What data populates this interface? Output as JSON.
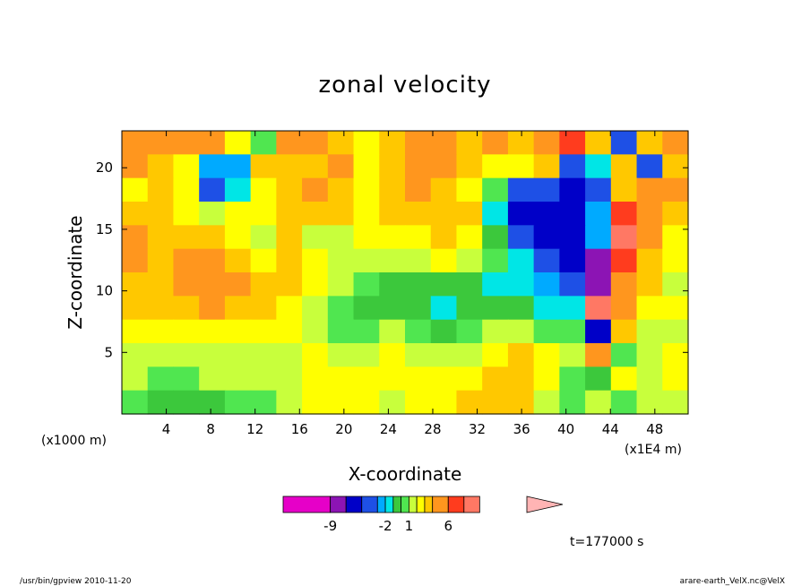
{
  "chart_data": {
    "type": "heatmap",
    "title": "zonal velocity",
    "xlabel": "X-coordinate",
    "ylabel": "Z-coordinate",
    "x_units": "(x1E4 m)",
    "y_units": "(x1000 m)",
    "xlim": [
      0,
      51
    ],
    "ylim": [
      0,
      23
    ],
    "x_ticks": [
      4,
      8,
      12,
      16,
      20,
      24,
      28,
      32,
      36,
      40,
      44,
      48
    ],
    "y_ticks": [
      5,
      10,
      15,
      20
    ],
    "colorbar": {
      "levels": [
        -15,
        -9,
        -7,
        -5,
        -3,
        -2,
        -1,
        0,
        1,
        2,
        3,
        4,
        6,
        8,
        10,
        16
      ],
      "colors": [
        "#e600c8",
        "#8c14b4",
        "#0000c8",
        "#1e50e6",
        "#00aaff",
        "#00e6e6",
        "#3cc83c",
        "#50e650",
        "#c8ff3c",
        "#ffff00",
        "#ffc800",
        "#ff961e",
        "#ff3c1e",
        "#ff7864",
        "#ffb4b4"
      ],
      "tick_labels": [
        "-9",
        "-2",
        "1",
        "6"
      ],
      "tick_values": [
        -9,
        -2,
        1,
        6
      ]
    },
    "grid": false,
    "z": [
      [
        4,
        4,
        5,
        4,
        2,
        0,
        4,
        4,
        3,
        2,
        3,
        5,
        4,
        3,
        4,
        3,
        4,
        6,
        3,
        -4,
        3,
        5
      ],
      [
        4,
        3,
        2,
        -3,
        -3,
        3,
        3,
        3,
        4,
        2,
        3,
        4,
        5,
        3,
        2,
        2,
        3,
        -4,
        -2,
        3,
        -5,
        3
      ],
      [
        2,
        3,
        2,
        -4,
        -2,
        2,
        3,
        4,
        3,
        2,
        3,
        4,
        3,
        2,
        0,
        -4,
        -5,
        -6,
        -4,
        3,
        4,
        4
      ],
      [
        3,
        3,
        2,
        1,
        2,
        2,
        3,
        3,
        3,
        2,
        3,
        3,
        3,
        3,
        -2,
        -6,
        -7,
        -6,
        -3,
        6,
        5,
        3
      ],
      [
        4,
        3,
        3,
        3,
        2,
        1,
        3,
        1,
        1,
        2,
        2,
        2,
        3,
        2,
        -1,
        -5,
        -7,
        -7,
        -3,
        8,
        4,
        2
      ],
      [
        4,
        3,
        4,
        4,
        3,
        2,
        3,
        2,
        1,
        1,
        1,
        1,
        2,
        1,
        0,
        -2,
        -5,
        -6,
        -8,
        6,
        3,
        2
      ],
      [
        3,
        3,
        4,
        4,
        4,
        3,
        3,
        2,
        1,
        0,
        -1,
        -1,
        -1,
        -1,
        -2,
        -2,
        -3,
        -5,
        -9,
        5,
        3,
        1
      ],
      [
        3,
        3,
        3,
        4,
        3,
        3,
        2,
        1,
        0,
        -1,
        -1,
        -1,
        -2,
        -1,
        -1,
        -1,
        -2,
        -2,
        8,
        4,
        2,
        2
      ],
      [
        2,
        2,
        2,
        2,
        2,
        2,
        2,
        1,
        0,
        0,
        1,
        0,
        -1,
        0,
        1,
        1,
        0,
        0,
        -6,
        3,
        1,
        1
      ],
      [
        1,
        1,
        1,
        1,
        1,
        1,
        1,
        2,
        1,
        1,
        2,
        1,
        1,
        1,
        2,
        3,
        2,
        1,
        5,
        0,
        1,
        2
      ],
      [
        1,
        0,
        0,
        1,
        1,
        1,
        1,
        2,
        2,
        2,
        2,
        2,
        2,
        2,
        3,
        3,
        2,
        0,
        -1,
        2,
        1,
        2
      ],
      [
        0,
        -1,
        -1,
        -1,
        0,
        0,
        1,
        2,
        2,
        2,
        1,
        2,
        2,
        3,
        3,
        3,
        1,
        0,
        1,
        0,
        1,
        1
      ]
    ]
  },
  "time_label": "t=177000 s",
  "footer_left": "/usr/bin/gpview   2010-11-20",
  "footer_right": "arare-earth_VelX.nc@VelX"
}
